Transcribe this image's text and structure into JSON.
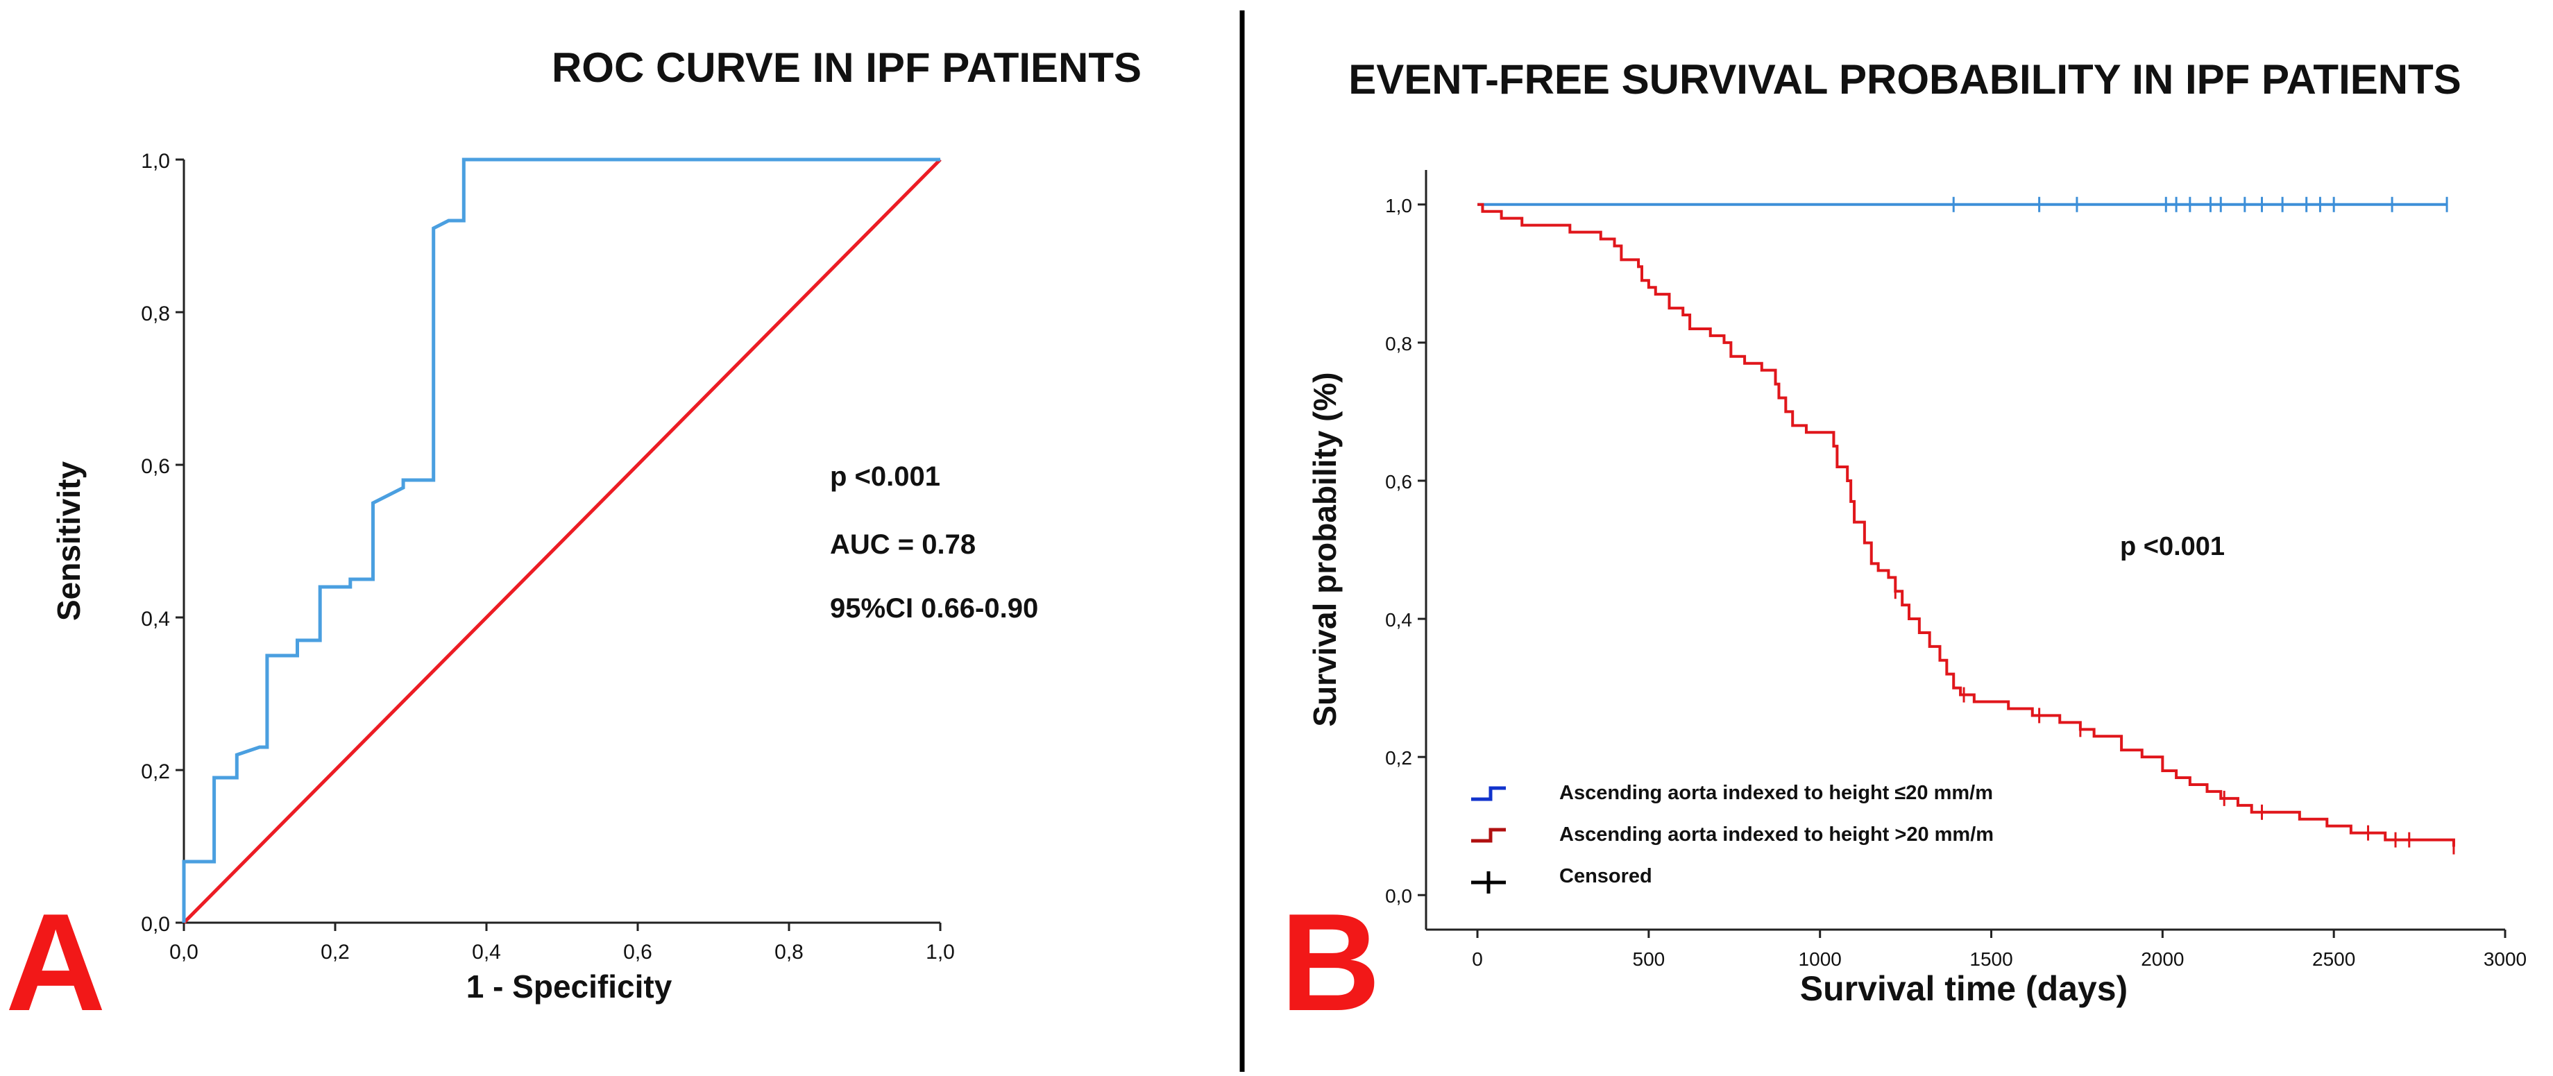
{
  "colors": {
    "roc_curve": "#4a9fe0",
    "reference_line": "#ec1c24",
    "km_low": "#3d8fd8",
    "km_high": "#e0161b",
    "panel_letter": "#f21818",
    "legend_low": "#1133cc",
    "legend_high": "#b01010",
    "legend_censored": "#000000",
    "axis": "#222222"
  },
  "panels": {
    "a": {
      "letter": "A"
    },
    "b": {
      "letter": "B"
    }
  },
  "chart_data": [
    {
      "id": "roc",
      "type": "line",
      "title": "ROC CURVE IN IPF PATIENTS",
      "xlabel": "1 - Specificity",
      "ylabel": "Sensitivity",
      "xlim": [
        0,
        1
      ],
      "ylim": [
        0,
        1
      ],
      "x_ticks": [
        0,
        0.2,
        0.4,
        0.6,
        0.8,
        1.0
      ],
      "y_ticks": [
        0,
        0.2,
        0.4,
        0.6,
        0.8,
        1.0
      ],
      "x_tick_labels": [
        "0,0",
        "0,2",
        "0,4",
        "0,6",
        "0,8",
        "1,0"
      ],
      "y_tick_labels": [
        "0,0",
        "0,2",
        "0,4",
        "0,6",
        "0,8",
        "1,0"
      ],
      "grid": false,
      "series": [
        {
          "name": "ROC curve",
          "step": true,
          "points": [
            [
              0,
              0
            ],
            [
              0,
              0.08
            ],
            [
              0.04,
              0.08
            ],
            [
              0.04,
              0.19
            ],
            [
              0.07,
              0.19
            ],
            [
              0.07,
              0.22
            ],
            [
              0.1,
              0.23
            ],
            [
              0.11,
              0.23
            ],
            [
              0.11,
              0.35
            ],
            [
              0.15,
              0.35
            ],
            [
              0.15,
              0.37
            ],
            [
              0.18,
              0.37
            ],
            [
              0.18,
              0.44
            ],
            [
              0.22,
              0.44
            ],
            [
              0.22,
              0.45
            ],
            [
              0.25,
              0.45
            ],
            [
              0.25,
              0.55
            ],
            [
              0.27,
              0.56
            ],
            [
              0.29,
              0.57
            ],
            [
              0.29,
              0.58
            ],
            [
              0.33,
              0.58
            ],
            [
              0.33,
              0.91
            ],
            [
              0.35,
              0.92
            ],
            [
              0.37,
              0.92
            ],
            [
              0.37,
              1.0
            ],
            [
              1.0,
              1.0
            ]
          ]
        },
        {
          "name": "Reference line",
          "step": false,
          "points": [
            [
              0,
              0
            ],
            [
              1,
              1
            ]
          ]
        }
      ],
      "annotations": [
        "p <0.001",
        "AUC = 0.78",
        "95%CI 0.66-0.90"
      ]
    },
    {
      "id": "km",
      "type": "line",
      "title": "EVENT-FREE SURVIVAL PROBABILITY IN IPF PATIENTS",
      "xlabel": "Survival time (days)",
      "ylabel": "Survival probability (%)",
      "xlim": [
        -150,
        3000
      ],
      "ylim": [
        -0.05,
        1.05
      ],
      "x_ticks": [
        0,
        500,
        1000,
        1500,
        2000,
        2500,
        3000
      ],
      "y_ticks": [
        0,
        0.2,
        0.4,
        0.6,
        0.8,
        1.0
      ],
      "x_tick_labels": [
        "0",
        "500",
        "1000",
        "1500",
        "2000",
        "2500",
        "3000"
      ],
      "y_tick_labels": [
        "0,0",
        "0,2",
        "0,4",
        "0,6",
        "0,8",
        "1,0"
      ],
      "grid": false,
      "series": [
        {
          "name": "Ascending aorta indexed to height ≤20 mm/m",
          "points": [
            [
              0,
              1.0
            ],
            [
              2830,
              1.0
            ]
          ],
          "censored": [
            1390,
            1640,
            1750,
            2010,
            2040,
            2080,
            2140,
            2170,
            2240,
            2290,
            2350,
            2420,
            2460,
            2500,
            2670,
            2830
          ]
        },
        {
          "name": "Ascending aorta indexed to height >20 mm/m",
          "points": [
            [
              0,
              1.0
            ],
            [
              15,
              0.99
            ],
            [
              60,
              0.99
            ],
            [
              70,
              0.98
            ],
            [
              120,
              0.98
            ],
            [
              130,
              0.97
            ],
            [
              260,
              0.97
            ],
            [
              270,
              0.96
            ],
            [
              350,
              0.96
            ],
            [
              360,
              0.95
            ],
            [
              400,
              0.94
            ],
            [
              420,
              0.92
            ],
            [
              470,
              0.91
            ],
            [
              480,
              0.89
            ],
            [
              500,
              0.88
            ],
            [
              520,
              0.87
            ],
            [
              560,
              0.85
            ],
            [
              600,
              0.84
            ],
            [
              620,
              0.82
            ],
            [
              680,
              0.81
            ],
            [
              720,
              0.8
            ],
            [
              740,
              0.78
            ],
            [
              780,
              0.77
            ],
            [
              830,
              0.76
            ],
            [
              870,
              0.74
            ],
            [
              880,
              0.72
            ],
            [
              900,
              0.7
            ],
            [
              920,
              0.68
            ],
            [
              960,
              0.67
            ],
            [
              1040,
              0.65
            ],
            [
              1050,
              0.62
            ],
            [
              1080,
              0.6
            ],
            [
              1090,
              0.57
            ],
            [
              1100,
              0.54
            ],
            [
              1130,
              0.51
            ],
            [
              1150,
              0.48
            ],
            [
              1170,
              0.47
            ],
            [
              1200,
              0.46
            ],
            [
              1220,
              0.44
            ],
            [
              1240,
              0.42
            ],
            [
              1260,
              0.4
            ],
            [
              1290,
              0.38
            ],
            [
              1320,
              0.36
            ],
            [
              1350,
              0.34
            ],
            [
              1370,
              0.32
            ],
            [
              1390,
              0.3
            ],
            [
              1410,
              0.29
            ],
            [
              1450,
              0.28
            ],
            [
              1550,
              0.27
            ],
            [
              1620,
              0.26
            ],
            [
              1700,
              0.25
            ],
            [
              1760,
              0.24
            ],
            [
              1800,
              0.23
            ],
            [
              1880,
              0.21
            ],
            [
              1940,
              0.2
            ],
            [
              2000,
              0.18
            ],
            [
              2040,
              0.17
            ],
            [
              2080,
              0.16
            ],
            [
              2130,
              0.15
            ],
            [
              2170,
              0.14
            ],
            [
              2220,
              0.13
            ],
            [
              2260,
              0.12
            ],
            [
              2400,
              0.11
            ],
            [
              2480,
              0.1
            ],
            [
              2550,
              0.09
            ],
            [
              2650,
              0.08
            ],
            [
              2850,
              0.07
            ]
          ],
          "censored": [
            1220,
            1420,
            1640,
            1760,
            2180,
            2290,
            2600,
            2680,
            2720,
            2850
          ]
        }
      ],
      "legend": {
        "placement": "bottom-left",
        "entries": [
          "Ascending aorta indexed to height ≤20 mm/m",
          "Ascending aorta indexed to height >20 mm/m",
          "Censored"
        ]
      },
      "annotations": [
        "p <0.001"
      ]
    }
  ]
}
